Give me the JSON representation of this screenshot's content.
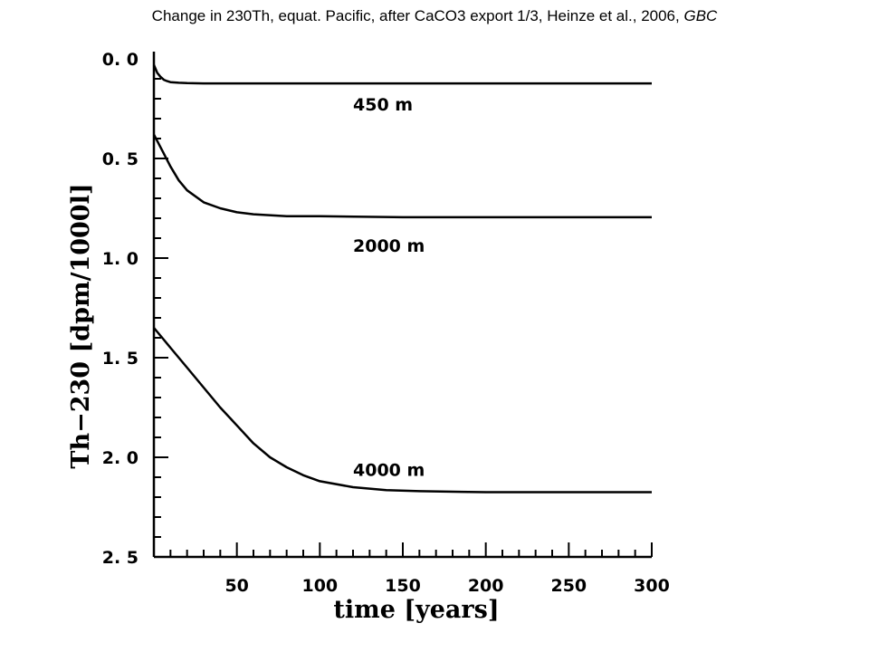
{
  "title": {
    "main": "Change in 230Th, equat. Pacific, after CaCO3 export  1/3, Heinze et al., 2006,",
    "journal": "GBC"
  },
  "chart_data": {
    "type": "line",
    "xlabel": "time [years]",
    "ylabel": "Th−230 [dpm/1000l]",
    "xlim": [
      0,
      300
    ],
    "ylim": [
      0,
      2.5
    ],
    "y_inverted": true,
    "x_ticks": [
      50,
      100,
      150,
      200,
      250,
      300
    ],
    "y_ticks": [
      0.0,
      0.5,
      1.0,
      1.5,
      2.0,
      2.5
    ],
    "x_tick_labels": [
      "50",
      "100",
      "150",
      "200",
      "250",
      "300"
    ],
    "y_tick_labels": [
      "0. 0",
      "0. 5",
      "1. 0",
      "1. 5",
      "2. 0",
      "2. 5"
    ],
    "grid": false,
    "series": [
      {
        "name": "450 m",
        "x": [
          0,
          2,
          4,
          6,
          8,
          10,
          15,
          20,
          30,
          50,
          100,
          200,
          300
        ],
        "y": [
          0.03,
          0.07,
          0.09,
          0.105,
          0.112,
          0.117,
          0.12,
          0.122,
          0.123,
          0.123,
          0.123,
          0.123,
          0.123
        ]
      },
      {
        "name": "2000 m",
        "x": [
          0,
          5,
          10,
          15,
          20,
          30,
          40,
          50,
          60,
          80,
          100,
          150,
          200,
          300
        ],
        "y": [
          0.38,
          0.46,
          0.54,
          0.61,
          0.66,
          0.72,
          0.75,
          0.77,
          0.78,
          0.79,
          0.79,
          0.795,
          0.795,
          0.795
        ]
      },
      {
        "name": "4000 m",
        "x": [
          0,
          5,
          10,
          20,
          30,
          40,
          50,
          60,
          70,
          80,
          90,
          100,
          120,
          140,
          160,
          200,
          250,
          300
        ],
        "y": [
          1.35,
          1.4,
          1.45,
          1.55,
          1.65,
          1.75,
          1.84,
          1.93,
          2.0,
          2.05,
          2.09,
          2.12,
          2.15,
          2.165,
          2.17,
          2.175,
          2.175,
          2.175
        ]
      }
    ]
  }
}
